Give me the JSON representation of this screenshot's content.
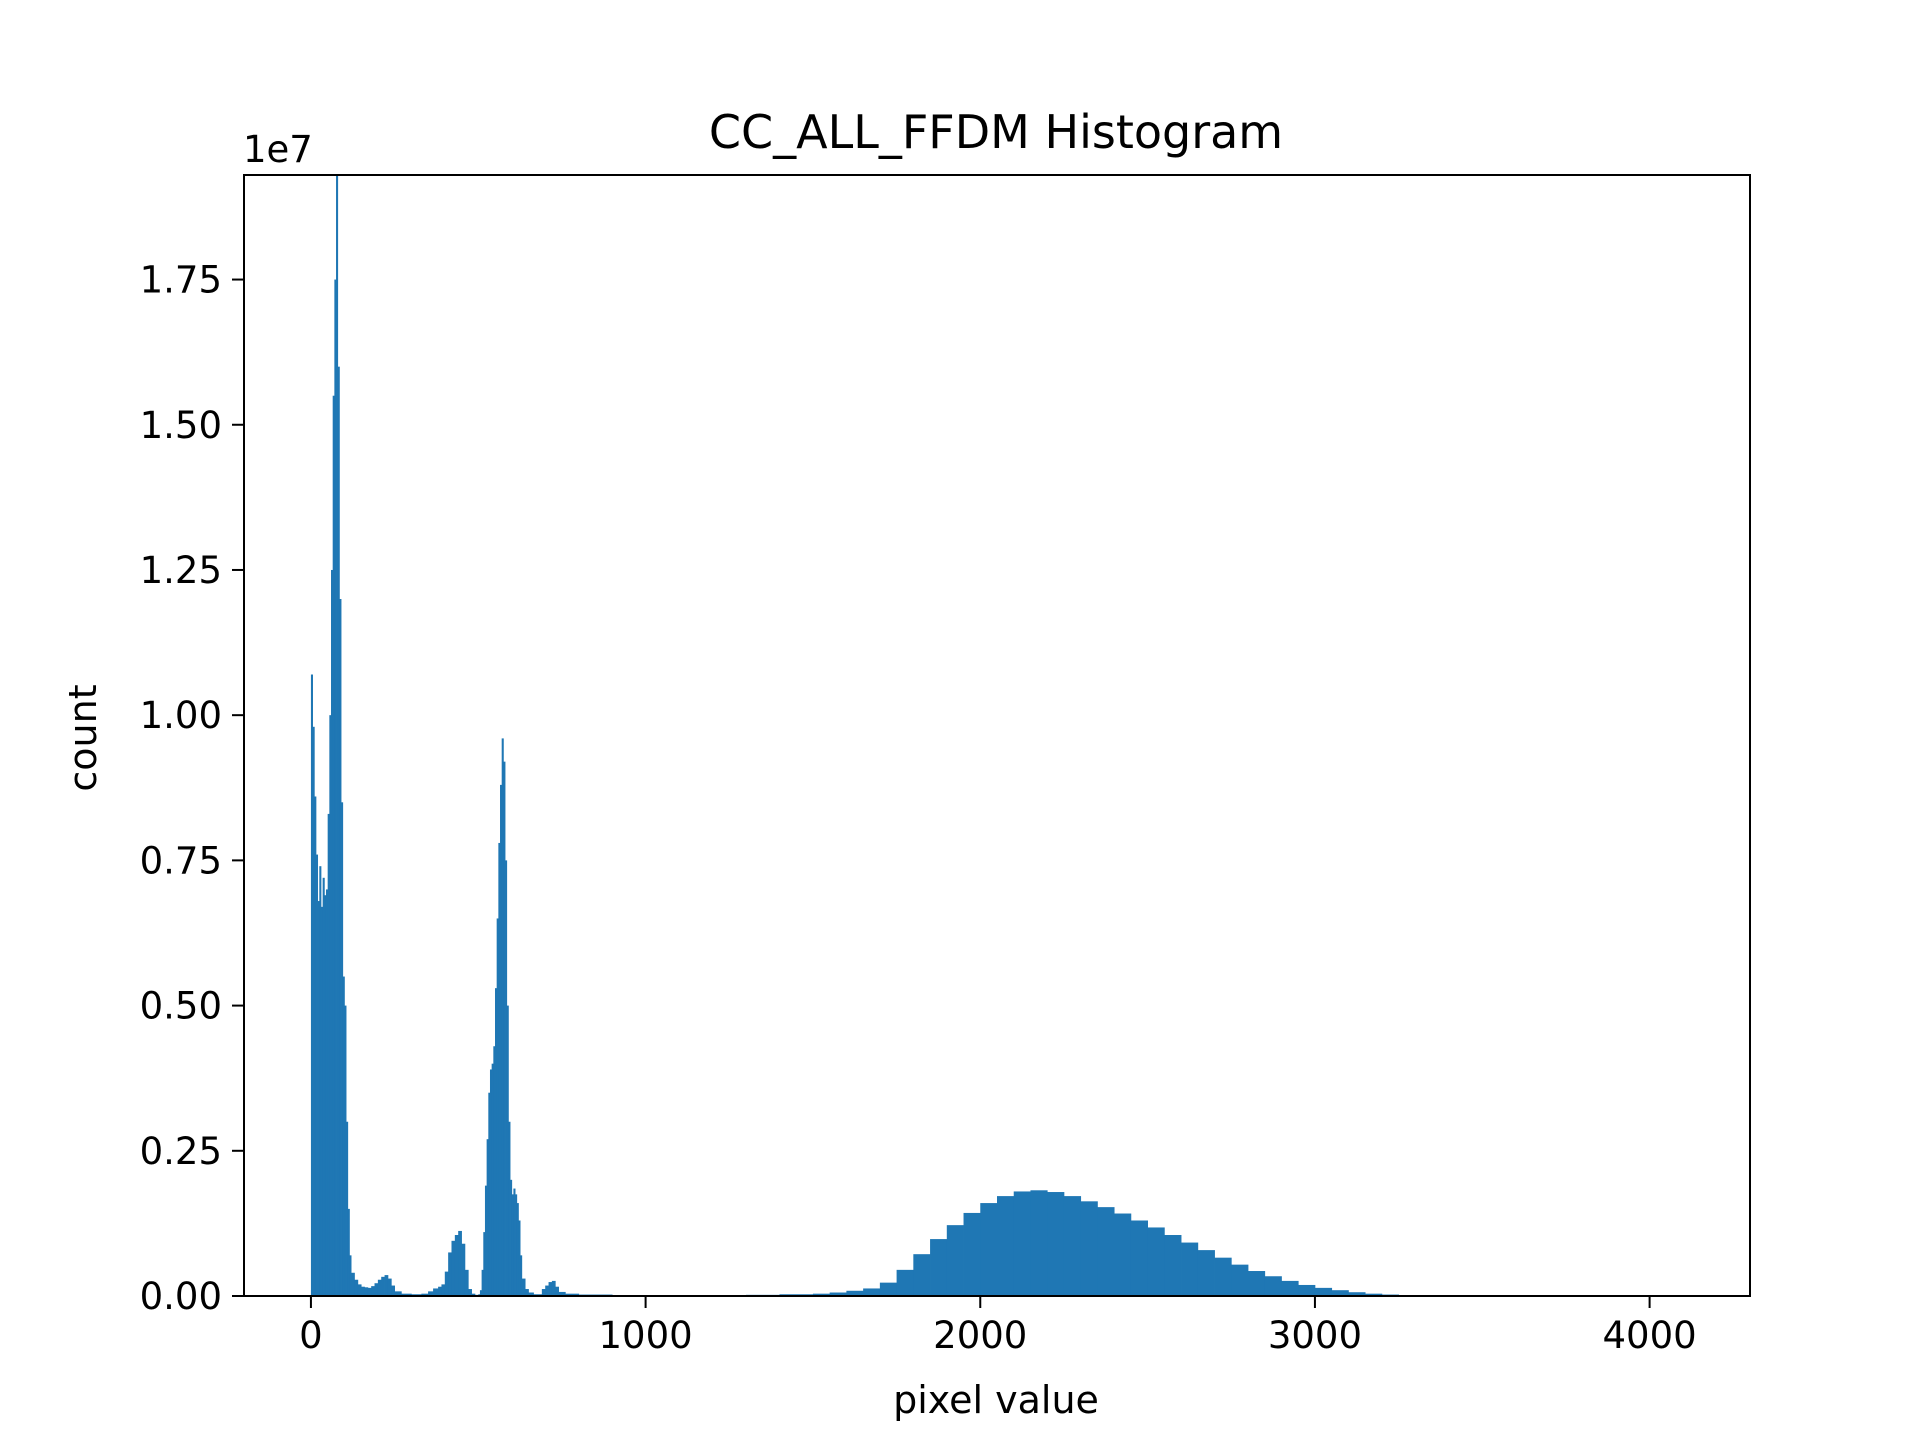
{
  "chart_data": {
    "type": "bar",
    "title": "CC_ALL_FFDM Histogram",
    "xlabel": "pixel value",
    "ylabel": "count",
    "y_offset_label": "1e7",
    "xlim": [
      -200,
      4300
    ],
    "ylim": [
      0,
      19300000
    ],
    "x_ticks": [
      0,
      1000,
      2000,
      3000,
      4000
    ],
    "x_tick_labels": [
      "0",
      "1000",
      "2000",
      "3000",
      "4000"
    ],
    "y_ticks": [
      0,
      2500000,
      5000000,
      7500000,
      10000000,
      12500000,
      15000000,
      17500000
    ],
    "y_tick_labels": [
      "0.00",
      "0.25",
      "0.50",
      "0.75",
      "1.00",
      "1.25",
      "1.50",
      "1.75"
    ],
    "grid": false,
    "bar_color": "#1f77b4",
    "series": [
      {
        "bins": [
          [
            0,
            10700000
          ],
          [
            5,
            9800000
          ],
          [
            10,
            8600000
          ],
          [
            15,
            7600000
          ],
          [
            20,
            6800000
          ],
          [
            25,
            7400000
          ],
          [
            30,
            6700000
          ],
          [
            35,
            7200000
          ],
          [
            40,
            6900000
          ],
          [
            45,
            7000000
          ],
          [
            50,
            8300000
          ],
          [
            55,
            10000000
          ],
          [
            60,
            12500000
          ],
          [
            65,
            15500000
          ],
          [
            70,
            17500000
          ],
          [
            75,
            19300000
          ],
          [
            80,
            16000000
          ],
          [
            85,
            12000000
          ],
          [
            90,
            8500000
          ],
          [
            95,
            5500000
          ],
          [
            100,
            5000000
          ],
          [
            105,
            3000000
          ],
          [
            110,
            1500000
          ],
          [
            115,
            700000
          ],
          [
            120,
            400000
          ],
          [
            130,
            280000
          ],
          [
            140,
            200000
          ],
          [
            150,
            160000
          ],
          [
            160,
            150000
          ],
          [
            170,
            140000
          ],
          [
            180,
            170000
          ],
          [
            190,
            220000
          ],
          [
            200,
            280000
          ],
          [
            210,
            330000
          ],
          [
            220,
            360000
          ],
          [
            230,
            300000
          ],
          [
            240,
            180000
          ],
          [
            250,
            80000
          ],
          [
            270,
            40000
          ],
          [
            300,
            30000
          ],
          [
            330,
            40000
          ],
          [
            350,
            80000
          ],
          [
            365,
            130000
          ],
          [
            380,
            160000
          ],
          [
            390,
            200000
          ],
          [
            400,
            420000
          ],
          [
            410,
            750000
          ],
          [
            420,
            950000
          ],
          [
            430,
            1050000
          ],
          [
            440,
            1120000
          ],
          [
            450,
            900000
          ],
          [
            460,
            450000
          ],
          [
            470,
            120000
          ],
          [
            480,
            40000
          ],
          [
            490,
            20000
          ],
          [
            500,
            30000
          ],
          [
            505,
            100000
          ],
          [
            510,
            450000
          ],
          [
            515,
            1100000
          ],
          [
            520,
            1900000
          ],
          [
            525,
            2700000
          ],
          [
            530,
            3500000
          ],
          [
            535,
            3900000
          ],
          [
            540,
            4000000
          ],
          [
            545,
            4300000
          ],
          [
            550,
            5300000
          ],
          [
            555,
            6500000
          ],
          [
            560,
            7800000
          ],
          [
            565,
            8800000
          ],
          [
            570,
            9600000
          ],
          [
            575,
            9200000
          ],
          [
            580,
            7500000
          ],
          [
            585,
            5000000
          ],
          [
            590,
            3000000
          ],
          [
            595,
            2000000
          ],
          [
            600,
            1750000
          ],
          [
            605,
            1850000
          ],
          [
            610,
            1750000
          ],
          [
            615,
            1600000
          ],
          [
            620,
            1300000
          ],
          [
            625,
            700000
          ],
          [
            630,
            300000
          ],
          [
            640,
            120000
          ],
          [
            650,
            60000
          ],
          [
            665,
            30000
          ],
          [
            690,
            120000
          ],
          [
            700,
            180000
          ],
          [
            710,
            240000
          ],
          [
            720,
            260000
          ],
          [
            730,
            160000
          ],
          [
            740,
            70000
          ],
          [
            760,
            40000
          ],
          [
            800,
            25000
          ],
          [
            900,
            15000
          ],
          [
            1000,
            12000
          ],
          [
            1100,
            12000
          ],
          [
            1200,
            15000
          ],
          [
            1300,
            20000
          ],
          [
            1400,
            30000
          ],
          [
            1500,
            40000
          ],
          [
            1550,
            60000
          ],
          [
            1600,
            90000
          ],
          [
            1650,
            130000
          ],
          [
            1700,
            230000
          ],
          [
            1750,
            450000
          ],
          [
            1800,
            720000
          ],
          [
            1850,
            980000
          ],
          [
            1900,
            1220000
          ],
          [
            1950,
            1430000
          ],
          [
            2000,
            1600000
          ],
          [
            2050,
            1720000
          ],
          [
            2100,
            1800000
          ],
          [
            2150,
            1820000
          ],
          [
            2200,
            1790000
          ],
          [
            2250,
            1720000
          ],
          [
            2300,
            1630000
          ],
          [
            2350,
            1530000
          ],
          [
            2400,
            1420000
          ],
          [
            2450,
            1300000
          ],
          [
            2500,
            1180000
          ],
          [
            2550,
            1050000
          ],
          [
            2600,
            920000
          ],
          [
            2650,
            790000
          ],
          [
            2700,
            660000
          ],
          [
            2750,
            540000
          ],
          [
            2800,
            430000
          ],
          [
            2850,
            340000
          ],
          [
            2900,
            260000
          ],
          [
            2950,
            190000
          ],
          [
            3000,
            140000
          ],
          [
            3050,
            100000
          ],
          [
            3100,
            65000
          ],
          [
            3150,
            40000
          ],
          [
            3200,
            25000
          ],
          [
            3250,
            12000
          ],
          [
            3300,
            6000
          ],
          [
            3400,
            3000
          ],
          [
            3600,
            1500
          ],
          [
            3800,
            800
          ],
          [
            4095,
            0
          ]
        ]
      }
    ]
  }
}
